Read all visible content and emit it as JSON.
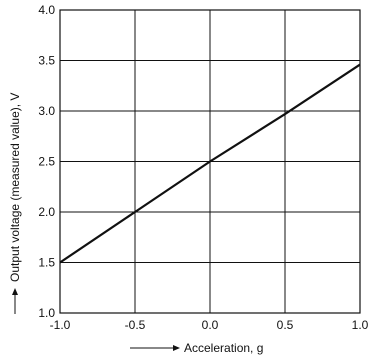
{
  "chart_data": {
    "type": "line",
    "xlabel": "Acceleration, g",
    "ylabel": "Output voltage (measured value), V",
    "xlim": [
      -1.0,
      1.0
    ],
    "ylim": [
      1.0,
      4.0
    ],
    "x_ticks": [
      "-1.0",
      "-0.5",
      "0.0",
      "0.5",
      "1.0"
    ],
    "y_ticks": [
      "1.0",
      "1.5",
      "2.0",
      "2.5",
      "3.0",
      "3.5",
      "4.0"
    ],
    "grid": true,
    "series": [
      {
        "x": [
          -1.0,
          -0.5,
          0.0,
          0.5,
          1.0
        ],
        "y": [
          1.5,
          2.0,
          2.5,
          2.97,
          3.46
        ]
      }
    ],
    "line_color": "#111111"
  }
}
